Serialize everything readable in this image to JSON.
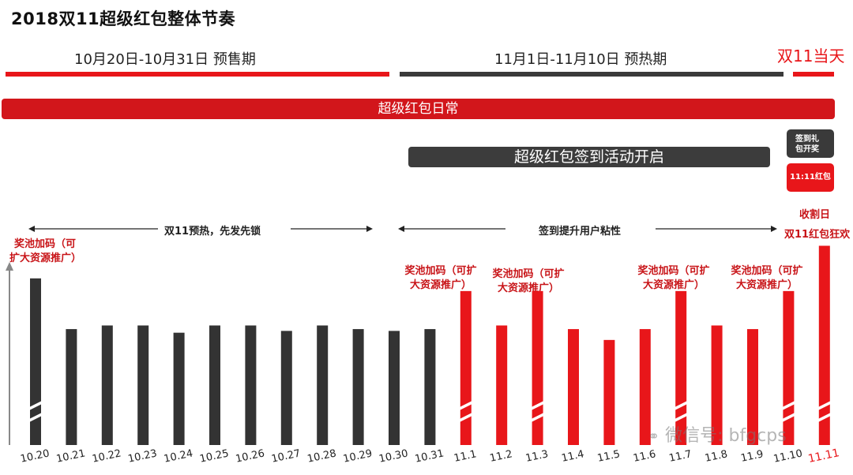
{
  "title": "2018双11超级红包整体节奏",
  "phases": {
    "presale": "10月20日-10月31日 预售期",
    "preheat": "11月1日-11月10日 预热期",
    "day": "双11当天"
  },
  "banners": {
    "daily": "超级红包日常",
    "checkin": "超级红包签到活动开启",
    "gift_box": "签到礼包开奖",
    "red_box": "11:11红包"
  },
  "annotations": {
    "harvest": "收割日",
    "carnival": "双11红包狂欢",
    "pool": "奖池加码（可扩大资源推广）",
    "arrow_left": "双11预热，先发先锁",
    "arrow_right": "签到提升用户粘性"
  },
  "watermark": "微信号: bfgcps",
  "colors": {
    "red": "#e8161a",
    "dark": "#333333",
    "gray": "#888888"
  },
  "chart_data": {
    "type": "bar",
    "categories": [
      "10.20",
      "10.21",
      "10.22",
      "10.23",
      "10.24",
      "10.25",
      "10.26",
      "10.27",
      "10.28",
      "10.29",
      "10.30",
      "10.31",
      "11.1",
      "11.2",
      "11.3",
      "11.4",
      "11.5",
      "11.6",
      "11.7",
      "11.8",
      "11.9",
      "11.10",
      "11.11"
    ],
    "values": [
      92,
      64,
      66,
      66,
      62,
      66,
      66,
      63,
      66,
      64,
      63,
      64,
      85,
      66,
      85,
      64,
      58,
      64,
      85,
      66,
      64,
      85,
      110
    ],
    "colors": [
      "#333333",
      "#333333",
      "#333333",
      "#333333",
      "#333333",
      "#333333",
      "#333333",
      "#333333",
      "#333333",
      "#333333",
      "#333333",
      "#333333",
      "#e8161a",
      "#e8161a",
      "#e8161a",
      "#e8161a",
      "#e8161a",
      "#e8161a",
      "#e8161a",
      "#e8161a",
      "#e8161a",
      "#e8161a",
      "#e8161a"
    ],
    "axis_break": true,
    "highlighted_categories": [
      "10.20",
      "11.1",
      "11.3",
      "11.7",
      "11.10",
      "11.11"
    ],
    "ylim": [
      0,
      115
    ]
  }
}
